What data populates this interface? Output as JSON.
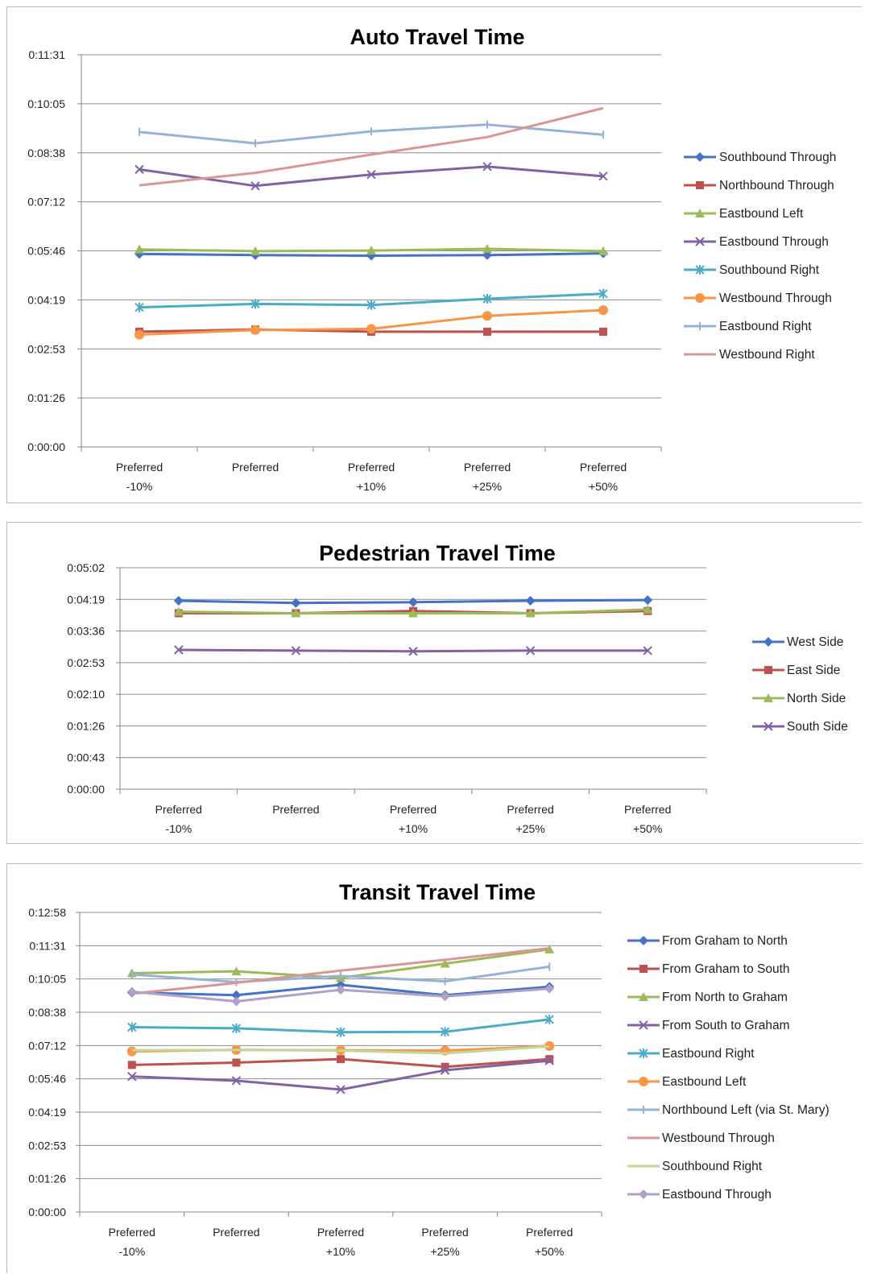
{
  "chart_data": [
    {
      "type": "line",
      "title": "Auto Travel Time",
      "xlabel": "",
      "ylabel": "",
      "categories": [
        [
          "Preferred",
          "-10%"
        ],
        [
          "Preferred"
        ],
        [
          "Preferred",
          "+10%"
        ],
        [
          "Preferred",
          "+25%"
        ],
        [
          "Preferred",
          "+50%"
        ]
      ],
      "y_ticks": [
        "0:00:00",
        "0:01:26",
        "0:02:53",
        "0:04:19",
        "0:05:46",
        "0:07:12",
        "0:08:38",
        "0:10:05",
        "0:11:31"
      ],
      "ylim_seconds": [
        0,
        691
      ],
      "grid": true,
      "legend_position": "right",
      "value_unit": "seconds",
      "series": [
        {
          "name": "Southbound Through",
          "color": "#4472C4",
          "marker": "diamond",
          "values": [
            340,
            338,
            337,
            338,
            341
          ]
        },
        {
          "name": "Northbound Through",
          "color": "#C0504D",
          "marker": "square",
          "values": [
            203,
            207,
            203,
            203,
            203
          ]
        },
        {
          "name": "Eastbound Left",
          "color": "#9BBB59",
          "marker": "triangle",
          "values": [
            348,
            345,
            346,
            349,
            345
          ]
        },
        {
          "name": "Eastbound Through",
          "color": "#8064A2",
          "marker": "x",
          "values": [
            489,
            460,
            480,
            494,
            477
          ]
        },
        {
          "name": "Southbound Right",
          "color": "#4BACC6",
          "marker": "star",
          "values": [
            246,
            252,
            250,
            261,
            270
          ]
        },
        {
          "name": "Westbound Through",
          "color": "#F79646",
          "marker": "circle",
          "values": [
            198,
            206,
            208,
            231,
            241
          ]
        },
        {
          "name": "Eastbound Right",
          "color": "#95B3D7",
          "marker": "plus",
          "values": [
            555,
            535,
            556,
            568,
            550
          ]
        },
        {
          "name": "Westbound Right",
          "color": "#DA9694",
          "marker": "none",
          "values": [
            461,
            483,
            515,
            546,
            597
          ]
        }
      ]
    },
    {
      "type": "line",
      "title": "Pedestrian Travel Time",
      "xlabel": "",
      "ylabel": "",
      "categories": [
        [
          "Preferred",
          "-10%"
        ],
        [
          "Preferred"
        ],
        [
          "Preferred",
          "+10%"
        ],
        [
          "Preferred",
          "+25%"
        ],
        [
          "Preferred",
          "+50%"
        ]
      ],
      "y_ticks": [
        "0:00:00",
        "0:00:43",
        "0:01:26",
        "0:02:10",
        "0:02:53",
        "0:03:36",
        "0:04:19",
        "0:05:02"
      ],
      "ylim_seconds": [
        0,
        302
      ],
      "grid": true,
      "legend_position": "right",
      "value_unit": "seconds",
      "series": [
        {
          "name": "West Side",
          "color": "#4472C4",
          "marker": "diamond",
          "values": [
            257,
            254,
            255,
            257,
            258
          ]
        },
        {
          "name": "East Side",
          "color": "#C0504D",
          "marker": "square",
          "values": [
            240,
            240,
            243,
            240,
            243
          ]
        },
        {
          "name": "North Side",
          "color": "#9BBB59",
          "marker": "triangle",
          "values": [
            242,
            240,
            240,
            240,
            245
          ]
        },
        {
          "name": "South Side",
          "color": "#8064A2",
          "marker": "x",
          "values": [
            190,
            189,
            188,
            189,
            189
          ]
        }
      ]
    },
    {
      "type": "line",
      "title": "Transit Travel Time",
      "xlabel": "",
      "ylabel": "",
      "categories": [
        [
          "Preferred",
          "-10%"
        ],
        [
          "Preferred"
        ],
        [
          "Preferred",
          "+10%"
        ],
        [
          "Preferred",
          "+25%"
        ],
        [
          "Preferred",
          "+50%"
        ]
      ],
      "y_ticks": [
        "0:00:00",
        "0:01:26",
        "0:02:53",
        "0:04:19",
        "0:05:46",
        "0:07:12",
        "0:08:38",
        "0:10:05",
        "0:11:31",
        "0:12:58"
      ],
      "ylim_seconds": [
        0,
        778
      ],
      "grid": true,
      "legend_position": "right",
      "value_unit": "seconds",
      "series": [
        {
          "name": "From Graham to North",
          "color": "#4472C4",
          "marker": "diamond",
          "values": [
            570,
            563,
            590,
            563,
            585
          ]
        },
        {
          "name": "From Graham to South",
          "color": "#C0504D",
          "marker": "square",
          "values": [
            382,
            388,
            397,
            377,
            397
          ]
        },
        {
          "name": "From North to Graham",
          "color": "#9BBB59",
          "marker": "triangle",
          "values": [
            620,
            625,
            608,
            645,
            682
          ]
        },
        {
          "name": "From South to Graham",
          "color": "#8064A2",
          "marker": "x",
          "values": [
            352,
            341,
            318,
            368,
            393
          ]
        },
        {
          "name": "Eastbound Right",
          "color": "#4BACC6",
          "marker": "star",
          "values": [
            480,
            477,
            467,
            468,
            500
          ]
        },
        {
          "name": "Eastbound Left",
          "color": "#F79646",
          "marker": "circle",
          "values": [
            417,
            421,
            420,
            419,
            431
          ]
        },
        {
          "name": "Northbound Left (via St. Mary)",
          "color": "#95B3D7",
          "marker": "plus",
          "values": [
            617,
            597,
            613,
            599,
            637
          ]
        },
        {
          "name": "Westbound Through",
          "color": "#DA9694",
          "marker": "none",
          "values": [
            567,
            595,
            627,
            655,
            685
          ]
        },
        {
          "name": "Southbound Right",
          "color": "#C3D69B",
          "marker": "none",
          "values": [
            420,
            421,
            419,
            412,
            430
          ]
        },
        {
          "name": "Eastbound Through",
          "color": "#B1A0C7",
          "marker": "diamond",
          "values": [
            572,
            547,
            577,
            560,
            580
          ]
        }
      ]
    }
  ]
}
